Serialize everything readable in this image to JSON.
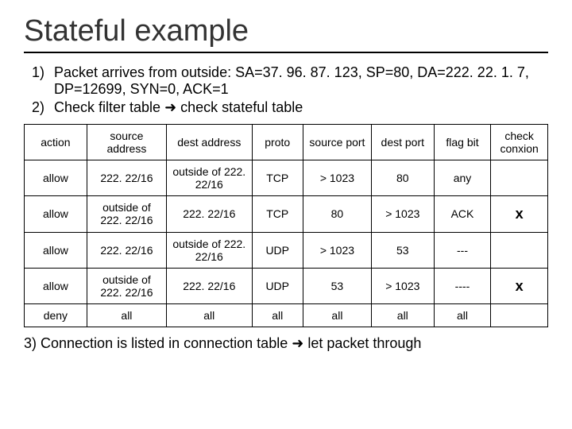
{
  "title": "Stateful example",
  "bullets": {
    "b1_num": "1)",
    "b1_text": "Packet arrives from outside: SA=37. 96. 87. 123, SP=80, DA=222. 22. 1. 7, DP=12699, SYN=0, ACK=1",
    "b2_num": "2)",
    "b2_text_pre": "Check filter table ",
    "b2_arrow": "➜",
    "b2_text_post": " check stateful table"
  },
  "headers": {
    "action": "action",
    "saddr": "source address",
    "daddr": "dest address",
    "proto": "proto",
    "sport": "source port",
    "dport": "dest port",
    "flag": "flag bit",
    "check": "check conxion"
  },
  "rows": {
    "r0": {
      "action": "allow",
      "saddr": "222. 22/16",
      "daddr": "outside of 222. 22/16",
      "proto": "TCP",
      "sport": "> 1023",
      "dport": "80",
      "flag": "any",
      "check": ""
    },
    "r1": {
      "action": "allow",
      "saddr": "outside of 222. 22/16",
      "daddr": "222. 22/16",
      "proto": "TCP",
      "sport": "80",
      "dport": "> 1023",
      "flag": "ACK",
      "check": "x"
    },
    "r2": {
      "action": "allow",
      "saddr": "222. 22/16",
      "daddr": "outside of 222. 22/16",
      "proto": "UDP",
      "sport": "> 1023",
      "dport": "53",
      "flag": "---",
      "check": ""
    },
    "r3": {
      "action": "allow",
      "saddr": "outside of 222. 22/16",
      "daddr": "222. 22/16",
      "proto": "UDP",
      "sport": "53",
      "dport": "> 1023",
      "flag": "----",
      "check": "x"
    },
    "r4": {
      "action": "deny",
      "saddr": "all",
      "daddr": "all",
      "proto": "all",
      "sport": "all",
      "dport": "all",
      "flag": "all",
      "check": ""
    }
  },
  "footer": {
    "num": "3)",
    "pre": " Connection is listed in connection table ",
    "arrow": "➜",
    "post": " let packet through"
  }
}
